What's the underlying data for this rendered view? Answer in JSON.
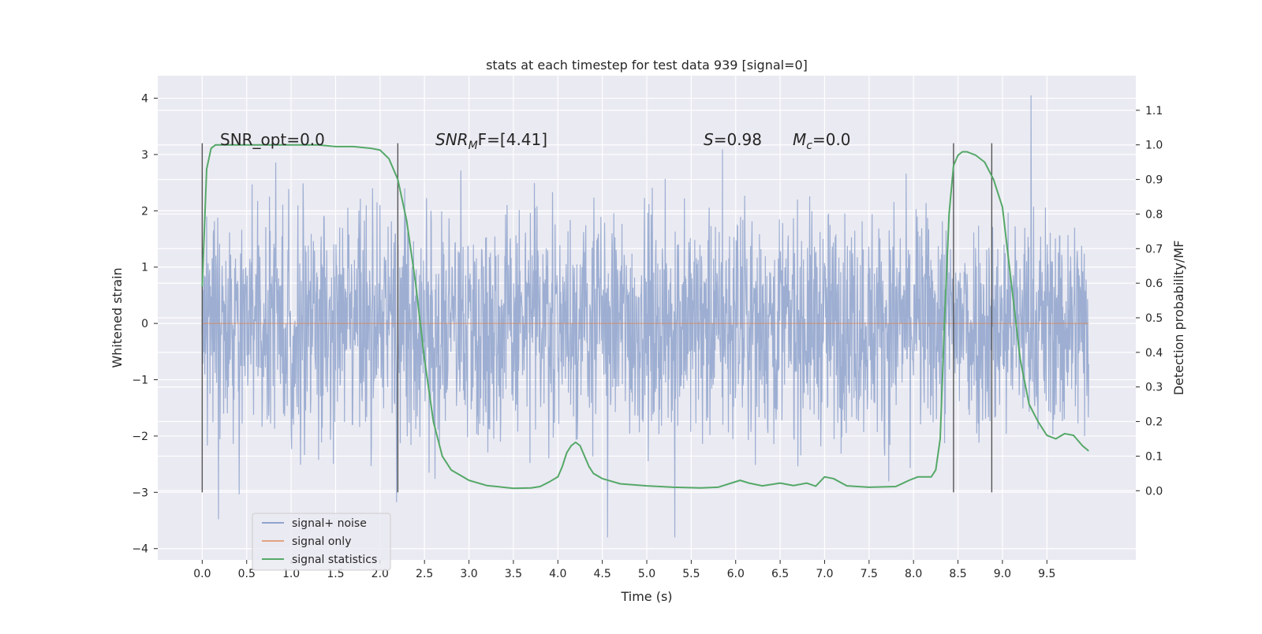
{
  "chart_data": {
    "type": "line",
    "title": "stats at each timestep for test data 939 [signal=0]",
    "xlabel": "Time (s)",
    "ylabel": "Whitened strain",
    "y2label": "Detection probability/MF",
    "xlim": [
      -0.5,
      10.5
    ],
    "ylim": [
      -4.2,
      4.4
    ],
    "y2lim": [
      -0.2,
      1.2
    ],
    "x_ticks": [
      0.0,
      0.5,
      1.0,
      1.5,
      2.0,
      2.5,
      3.0,
      3.5,
      4.0,
      4.5,
      5.0,
      5.5,
      6.0,
      6.5,
      7.0,
      7.5,
      8.0,
      8.5,
      9.0,
      9.5
    ],
    "x_tick_labels": [
      "0.0",
      "0.5",
      "1.0",
      "1.5",
      "2.0",
      "2.5",
      "3.0",
      "3.5",
      "4.0",
      "4.5",
      "5.0",
      "5.5",
      "6.0",
      "6.5",
      "7.0",
      "7.5",
      "8.0",
      "8.5",
      "9.0",
      "9.5"
    ],
    "y_ticks": [
      -4,
      -3,
      -2,
      -1,
      0,
      1,
      2,
      3,
      4
    ],
    "y_tick_labels": [
      "−4",
      "−3",
      "−2",
      "−1",
      "0",
      "1",
      "2",
      "3",
      "4"
    ],
    "y2_ticks": [
      0.0,
      0.1,
      0.2,
      0.3,
      0.4,
      0.5,
      0.6,
      0.7,
      0.8,
      0.9,
      1.0,
      1.1
    ],
    "y2_tick_labels": [
      "0.0",
      "0.1",
      "0.2",
      "0.3",
      "0.4",
      "0.5",
      "0.6",
      "0.7",
      "0.8",
      "0.9",
      "1.0",
      "1.1"
    ],
    "grid": true,
    "legend_position": "bottom-left",
    "series": [
      {
        "name": "signal+ noise",
        "color": "#8fa3cc",
        "axis": "left",
        "kind": "noise",
        "x_range": [
          0.0,
          9.97
        ],
        "typical_amplitude": 1.3,
        "peak_range": [
          -3.8,
          4.05
        ]
      },
      {
        "name": "signal only",
        "color": "#dd8452",
        "axis": "left",
        "x": [
          0.0,
          9.97
        ],
        "y": [
          0.0,
          0.0
        ]
      },
      {
        "name": "signal statistics",
        "color": "#55a868",
        "axis": "right",
        "x": [
          0.0,
          0.05,
          0.1,
          0.15,
          0.2,
          0.3,
          0.5,
          0.8,
          1.0,
          1.3,
          1.5,
          1.7,
          1.9,
          2.0,
          2.1,
          2.2,
          2.3,
          2.4,
          2.5,
          2.6,
          2.7,
          2.8,
          2.9,
          3.0,
          3.2,
          3.5,
          3.7,
          3.8,
          3.9,
          4.0,
          4.05,
          4.1,
          4.15,
          4.2,
          4.25,
          4.3,
          4.35,
          4.4,
          4.5,
          4.7,
          5.0,
          5.3,
          5.6,
          5.8,
          5.95,
          6.05,
          6.15,
          6.3,
          6.5,
          6.65,
          6.8,
          6.9,
          7.0,
          7.1,
          7.25,
          7.5,
          7.8,
          7.95,
          8.05,
          8.2,
          8.25,
          8.3,
          8.35,
          8.4,
          8.45,
          8.5,
          8.55,
          8.6,
          8.7,
          8.8,
          8.9,
          9.0,
          9.1,
          9.2,
          9.3,
          9.4,
          9.5,
          9.6,
          9.7,
          9.8,
          9.9,
          9.97
        ],
        "y": [
          0.59,
          0.93,
          0.99,
          1.0,
          1.0,
          1.0,
          1.0,
          1.0,
          1.0,
          1.0,
          0.995,
          0.995,
          0.99,
          0.985,
          0.96,
          0.9,
          0.78,
          0.6,
          0.38,
          0.2,
          0.1,
          0.06,
          0.045,
          0.03,
          0.015,
          0.007,
          0.008,
          0.012,
          0.025,
          0.04,
          0.07,
          0.11,
          0.13,
          0.14,
          0.13,
          0.1,
          0.07,
          0.05,
          0.035,
          0.02,
          0.014,
          0.01,
          0.008,
          0.01,
          0.022,
          0.03,
          0.022,
          0.014,
          0.022,
          0.015,
          0.022,
          0.013,
          0.04,
          0.035,
          0.014,
          0.01,
          0.012,
          0.03,
          0.04,
          0.04,
          0.06,
          0.15,
          0.5,
          0.8,
          0.94,
          0.97,
          0.98,
          0.98,
          0.97,
          0.95,
          0.9,
          0.82,
          0.6,
          0.38,
          0.25,
          0.2,
          0.16,
          0.15,
          0.165,
          0.16,
          0.13,
          0.115
        ]
      }
    ],
    "vertical_lines": [
      0.0,
      2.2,
      8.45,
      8.88
    ],
    "vertical_line_range": [
      -3.0,
      3.2
    ],
    "annotations": {
      "snr_opt": "SNR_opt=0.0",
      "snr_mf_base": "SNR",
      "snr_mf_sub": "M",
      "snr_mf_rest": "F=[4.41]",
      "s_base": "S",
      "s_rest": "=0.98",
      "mc_base": "M",
      "mc_sub": "c",
      "mc_rest": "=0.0"
    }
  }
}
